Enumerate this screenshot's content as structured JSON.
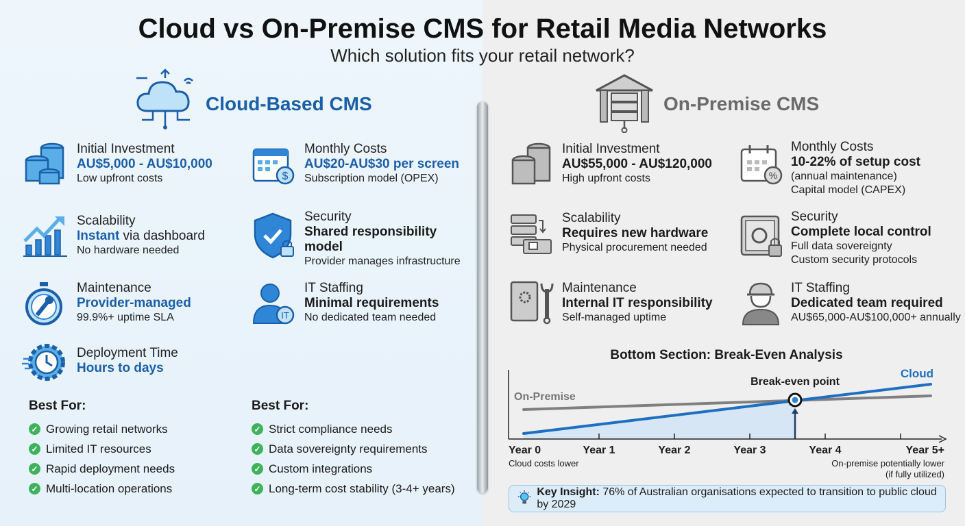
{
  "header": {
    "title": "Cloud vs On-Premise CMS for Retail Media Networks",
    "subtitle": "Which solution fits your retail network?"
  },
  "colors": {
    "cloud_blue": "#1a5fa8",
    "icon_blue": "#2f86d6",
    "onprem_gray": "#666666",
    "check_green": "#3fb25c",
    "chart_cloud": "#1e6fc0",
    "chart_onprem": "#808080"
  },
  "cloud": {
    "title": "Cloud-Based CMS",
    "icon": "cloud-network-icon",
    "items": [
      {
        "label": "Initial Investment",
        "value": "AU$5,000 - AU$10,000",
        "sub": "Low upfront costs",
        "icon": "coin-stack-icon"
      },
      {
        "label": "Monthly Costs",
        "value": "AU$20-AU$30 per screen",
        "sub": "Subscription model (OPEX)",
        "icon": "calendar-dollar-icon"
      },
      {
        "label": "Scalability",
        "value": "Instant",
        "value_rest": " via dashboard",
        "sub": "No hardware needed",
        "icon": "growth-chart-icon"
      },
      {
        "label": "Security",
        "value": "Shared responsibility model",
        "sub": "Provider manages infrastructure",
        "icon": "shield-check-icon"
      },
      {
        "label": "Maintenance",
        "value": "Provider-managed",
        "sub": "99.9%+ uptime SLA",
        "icon": "stopwatch-wrench-icon"
      },
      {
        "label": "IT Staffing",
        "value": "Minimal requirements",
        "sub": "No dedicated team needed",
        "icon": "person-it-icon"
      },
      {
        "label": "Deployment Time",
        "value": "Hours to days",
        "icon": "gear-clock-icon"
      }
    ],
    "best_for_title": "Best For:",
    "best_for": [
      "Growing retail networks",
      "Limited IT resources",
      "Rapid deployment needs",
      "Multi-location operations"
    ]
  },
  "onprem": {
    "title": "On-Premise CMS",
    "icon": "server-building-icon",
    "items": [
      {
        "label": "Initial Investment",
        "value": "AU$55,000 - AU$120,000",
        "sub": "High upfront costs",
        "icon": "coin-stack-icon"
      },
      {
        "label": "Monthly Costs",
        "value": "10-22% of setup cost",
        "sub": "(annual maintenance)",
        "sub2": "Capital model (CAPEX)",
        "icon": "calendar-percent-icon"
      },
      {
        "label": "Scalability",
        "value": "Requires new hardware",
        "sub": "Physical procurement needed",
        "icon": "server-hardware-icon"
      },
      {
        "label": "Security",
        "value": "Complete local control",
        "sub": "Full data sovereignty",
        "sub2": "Custom security protocols",
        "icon": "safe-lock-icon"
      },
      {
        "label": "Maintenance",
        "value": "Internal IT responsibility",
        "sub": "Self-managed uptime",
        "icon": "manual-wrench-icon"
      },
      {
        "label": "IT Staffing",
        "value": "Dedicated team required",
        "sub": "AU$65,000-AU$100,000+ annually",
        "icon": "hardhat-worker-icon"
      }
    ],
    "best_for_title": "Best For:",
    "best_for": [
      "Strict compliance needs",
      "Data sovereignty requirements",
      "Custom integrations",
      "Long-term cost stability (3-4+ years)"
    ]
  },
  "chart_data": {
    "type": "line",
    "title": "Bottom Section: Break-Even Analysis",
    "x_ticks": [
      {
        "x": 0,
        "label": "Year 0"
      },
      {
        "x": 1,
        "label": "Year 1"
      },
      {
        "x": 2,
        "label": "Year 2"
      },
      {
        "x": 3,
        "label": "Year 3"
      },
      {
        "x": 4,
        "label": "Year 4"
      },
      {
        "x": 5,
        "label": "Year 5+"
      }
    ],
    "xlim": [
      -0.2,
      5.6
    ],
    "ylim": [
      0,
      100
    ],
    "grid": false,
    "series": [
      {
        "name": "On-Premise",
        "x": [
          0,
          5.4
        ],
        "y": [
          43,
          63
        ],
        "color": "#808080"
      },
      {
        "name": "Cloud",
        "x": [
          0,
          5.4
        ],
        "y": [
          8,
          80
        ],
        "color": "#1e6fc0",
        "fill_until_break_even": true
      }
    ],
    "break_even": {
      "label": "Break-even point",
      "x": 3.6,
      "y": 57
    },
    "annotations": {
      "left": "Cloud costs lower",
      "right_line1": "On-premise potentially lower",
      "right_line2": "(if fully utilized)"
    }
  },
  "insight": {
    "icon": "lightbulb-icon",
    "label": "Key Insight:",
    "text": " 76% of Australian organisations expected to transition to public cloud by 2029"
  }
}
